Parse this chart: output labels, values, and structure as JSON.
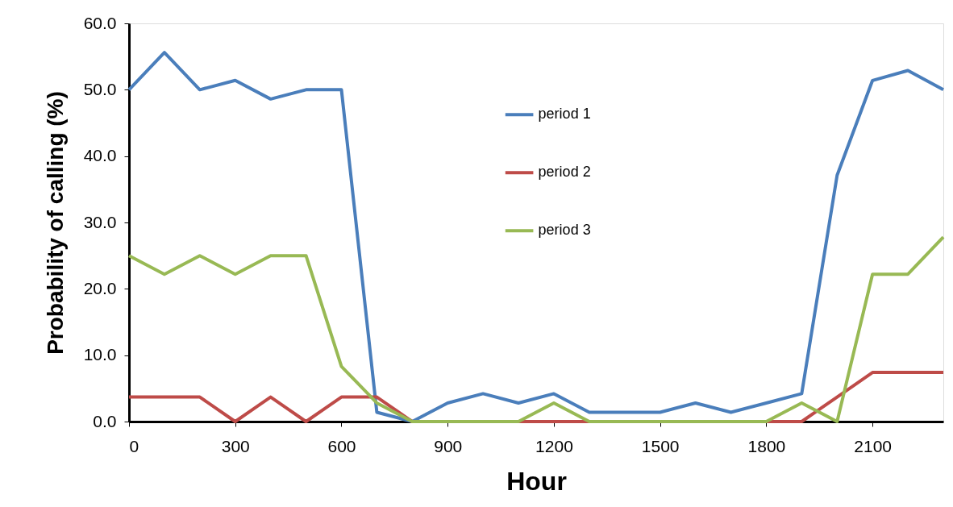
{
  "chart_data": {
    "type": "line",
    "xlabel": "Hour",
    "ylabel": "Probability of calling (%)",
    "x": [
      0,
      100,
      200,
      300,
      400,
      500,
      600,
      700,
      800,
      900,
      1000,
      1100,
      1200,
      1300,
      1400,
      1500,
      1600,
      1700,
      1800,
      1900,
      2000,
      2100,
      2200,
      2300
    ],
    "series": [
      {
        "name": "period 1",
        "color": "#4a7ebb",
        "values": [
          50.0,
          55.6,
          50.0,
          51.4,
          48.6,
          50.0,
          50.0,
          1.4,
          0,
          2.8,
          4.2,
          2.8,
          4.2,
          1.4,
          1.4,
          1.4,
          2.8,
          1.4,
          2.8,
          4.2,
          37.1,
          51.4,
          52.9,
          50.0
        ]
      },
      {
        "name": "period 2",
        "color": "#be4b48",
        "values": [
          3.7,
          3.7,
          3.7,
          0,
          3.7,
          0,
          3.7,
          3.7,
          0,
          0,
          0,
          0,
          0,
          0,
          0,
          0,
          0,
          0,
          0,
          0,
          3.7,
          7.4,
          7.4,
          7.4
        ]
      },
      {
        "name": "period 3",
        "color": "#98b954",
        "values": [
          25.0,
          22.2,
          25.0,
          22.2,
          25.0,
          25.0,
          8.3,
          2.8,
          0,
          0,
          0,
          0,
          2.8,
          0,
          0,
          0,
          0,
          0,
          0,
          2.8,
          0,
          22.2,
          22.2,
          27.8
        ]
      }
    ],
    "xlim": [
      0,
      2300
    ],
    "xticks": [
      0,
      300,
      600,
      900,
      1200,
      1500,
      1800,
      2100
    ],
    "ylim": [
      0,
      60
    ],
    "yticks": [
      {
        "value": 0,
        "label": "0.0"
      },
      {
        "value": 10,
        "label": "10.0"
      },
      {
        "value": 20,
        "label": "20.0"
      },
      {
        "value": 30,
        "label": "30.0"
      },
      {
        "value": 40,
        "label": "40.0"
      },
      {
        "value": 50,
        "label": "50.0"
      },
      {
        "value": 60,
        "label": "60.0"
      }
    ],
    "grid": false,
    "legend": "top",
    "marker": "none",
    "line_style": "solid"
  }
}
